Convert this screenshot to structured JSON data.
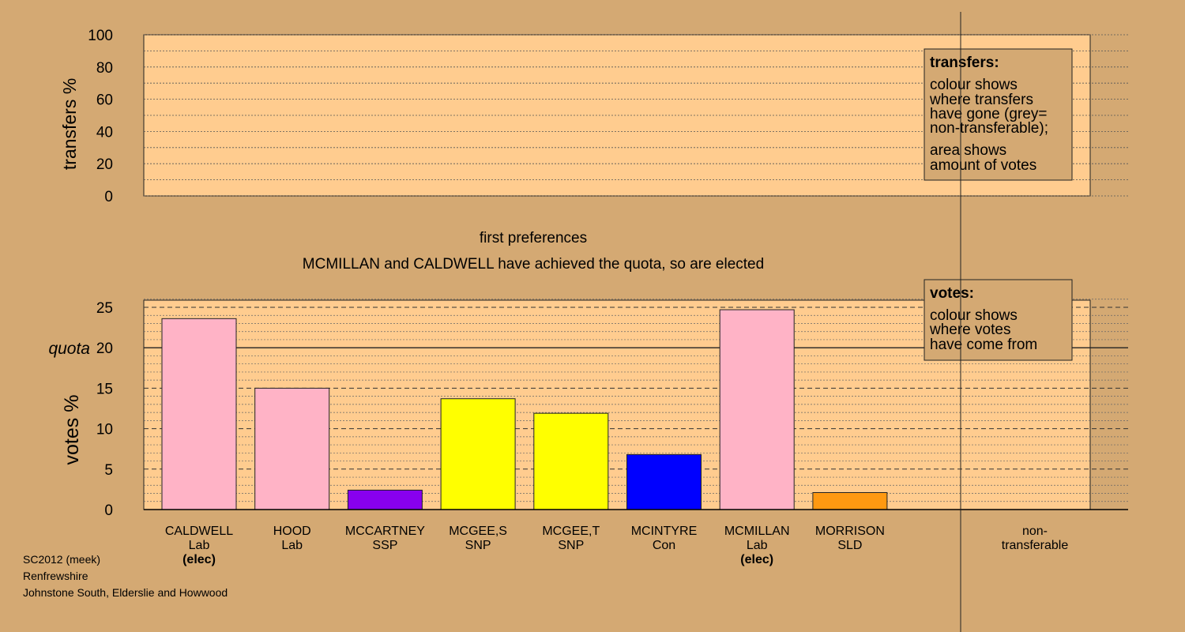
{
  "colors": {
    "background": "#d4a973",
    "plot_fill": "#ffcc8f",
    "grey": "#999999"
  },
  "chart_data": [
    {
      "type": "area",
      "panel": "transfers",
      "ylabel": "transfers %",
      "ylim": [
        0,
        100
      ],
      "yticks": [
        "0",
        "20",
        "40",
        "60",
        "80",
        "100"
      ],
      "series": [],
      "legend": {
        "position": "top-right",
        "title": "transfers:",
        "lines1": [
          "colour shows",
          "where transfers",
          "have gone (grey=",
          "non-transferable);"
        ],
        "lines2": [
          "area shows",
          "amount of votes"
        ]
      }
    },
    {
      "type": "bar",
      "panel": "votes",
      "title": "first preferences",
      "subtitle": "MCMILLAN and CALDWELL have achieved the quota, so are elected",
      "ylabel": "votes %",
      "ylim": [
        0,
        26
      ],
      "yticks": [
        "0",
        "5",
        "10",
        "15",
        "20",
        "25"
      ],
      "quota": {
        "label": "quota",
        "value": 20
      },
      "categories": [
        {
          "name": "CALDWELL",
          "party": "Lab",
          "elected": "(elec)",
          "value": 23.6,
          "color": "#ffb3c6"
        },
        {
          "name": "HOOD",
          "party": "Lab",
          "elected": "",
          "value": 15.0,
          "color": "#ffb3c6"
        },
        {
          "name": "MCCARTNEY",
          "party": "SSP",
          "elected": "",
          "value": 2.4,
          "color": "#8800ee"
        },
        {
          "name": "MCGEE,S",
          "party": "SNP",
          "elected": "",
          "value": 13.7,
          "color": "#ffff00"
        },
        {
          "name": "MCGEE,T",
          "party": "SNP",
          "elected": "",
          "value": 11.9,
          "color": "#ffff00"
        },
        {
          "name": "MCINTYRE",
          "party": "Con",
          "elected": "",
          "value": 6.8,
          "color": "#0000ff"
        },
        {
          "name": "MCMILLAN",
          "party": "Lab",
          "elected": "(elec)",
          "value": 24.7,
          "color": "#ffb3c6"
        },
        {
          "name": "MORRISON",
          "party": "SLD",
          "elected": "",
          "value": 2.1,
          "color": "#ff9911"
        }
      ],
      "nontransferable": {
        "label1": "non-",
        "label2": "transferable",
        "value": 0
      },
      "legend": {
        "position": "top-right",
        "title": "votes:",
        "lines": [
          "colour shows",
          "where votes",
          "have come from"
        ]
      }
    }
  ],
  "footer": {
    "line1": "SC2012 (meek)",
    "line2": "Renfrewshire",
    "line3": "Johnstone South, Elderslie and Howwood"
  }
}
